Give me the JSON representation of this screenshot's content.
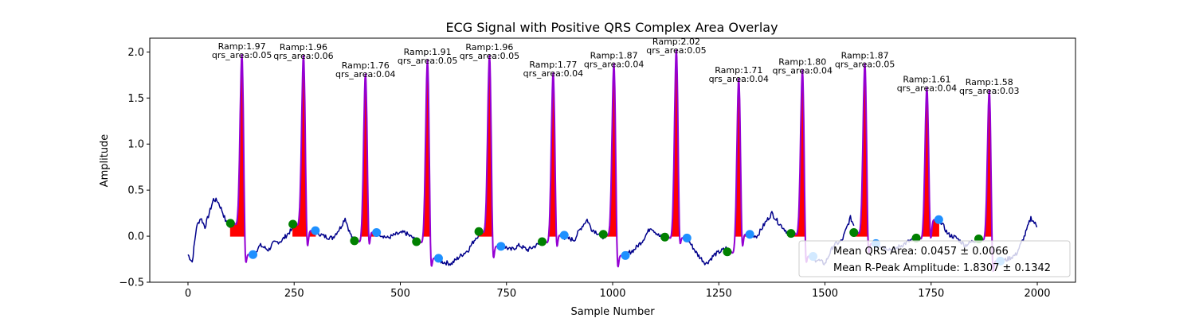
{
  "chart_data": {
    "type": "line",
    "title": "ECG Signal with Positive QRS Complex Area Overlay",
    "xlabel": "Sample Number",
    "ylabel": "Amplitude",
    "xlim": [
      -90,
      2090
    ],
    "ylim": [
      -0.5,
      2.15
    ],
    "xticks": [
      0,
      250,
      500,
      750,
      1000,
      1250,
      1500,
      1750,
      2000
    ],
    "yticks": [
      -0.5,
      0.0,
      0.5,
      1.0,
      1.5,
      2.0
    ],
    "ytick_labels": [
      "−0.5",
      "0.0",
      "0.5",
      "1.0",
      "1.5",
      "2.0"
    ],
    "grid": false,
    "colors": {
      "ecg": "#00008b",
      "qrs_line": "#9400d3",
      "qrs_fill": "#ff0000",
      "onset": "#008000",
      "offset": "#1e90ff"
    },
    "baseline": [
      [
        0,
        -0.2
      ],
      [
        10,
        -0.28
      ],
      [
        20,
        0.1
      ],
      [
        30,
        0.2
      ],
      [
        40,
        0.1
      ],
      [
        50,
        0.25
      ],
      [
        60,
        0.4
      ],
      [
        70,
        0.38
      ],
      [
        80,
        0.28
      ],
      [
        90,
        0.15
      ],
      [
        150,
        -0.22
      ],
      [
        170,
        -0.1
      ],
      [
        190,
        -0.15
      ],
      [
        200,
        -0.08
      ],
      [
        220,
        -0.05
      ],
      [
        240,
        0.05
      ],
      [
        260,
        0.12
      ],
      [
        300,
        0.05
      ],
      [
        320,
        0.0
      ],
      [
        340,
        -0.02
      ],
      [
        360,
        0.1
      ],
      [
        370,
        0.2
      ],
      [
        380,
        0.05
      ],
      [
        390,
        -0.05
      ],
      [
        440,
        0.05
      ],
      [
        470,
        -0.02
      ],
      [
        490,
        0.02
      ],
      [
        510,
        0.04
      ],
      [
        530,
        -0.02
      ],
      [
        580,
        -0.25
      ],
      [
        600,
        -0.28
      ],
      [
        620,
        -0.3
      ],
      [
        640,
        -0.22
      ],
      [
        660,
        -0.15
      ],
      [
        680,
        0.0
      ],
      [
        740,
        -0.1
      ],
      [
        760,
        -0.15
      ],
      [
        780,
        -0.1
      ],
      [
        800,
        -0.15
      ],
      [
        820,
        -0.1
      ],
      [
        840,
        -0.05
      ],
      [
        890,
        -0.02
      ],
      [
        910,
        -0.04
      ],
      [
        920,
        0.05
      ],
      [
        930,
        0.12
      ],
      [
        940,
        0.18
      ],
      [
        950,
        0.08
      ],
      [
        970,
        0.02
      ],
      [
        1030,
        -0.2
      ],
      [
        1050,
        -0.15
      ],
      [
        1070,
        -0.05
      ],
      [
        1090,
        0.1
      ],
      [
        1110,
        0.0
      ],
      [
        1130,
        -0.02
      ],
      [
        1175,
        -0.02
      ],
      [
        1200,
        -0.2
      ],
      [
        1220,
        -0.3
      ],
      [
        1240,
        -0.2
      ],
      [
        1260,
        -0.15
      ],
      [
        1320,
        0.02
      ],
      [
        1340,
        0.0
      ],
      [
        1360,
        0.15
      ],
      [
        1375,
        0.25
      ],
      [
        1390,
        0.15
      ],
      [
        1410,
        0.05
      ],
      [
        1420,
        0.02
      ],
      [
        1465,
        -0.3
      ],
      [
        1480,
        -0.25
      ],
      [
        1500,
        -0.3
      ],
      [
        1520,
        -0.1
      ],
      [
        1540,
        -0.05
      ],
      [
        1560,
        0.2
      ],
      [
        1575,
        0.05
      ],
      [
        1620,
        -0.08
      ],
      [
        1640,
        -0.12
      ],
      [
        1660,
        -0.15
      ],
      [
        1680,
        -0.1
      ],
      [
        1700,
        -0.05
      ],
      [
        1720,
        -0.02
      ],
      [
        1770,
        0.18
      ],
      [
        1790,
        0.02
      ],
      [
        1810,
        -0.02
      ],
      [
        1830,
        -0.1
      ],
      [
        1850,
        -0.05
      ],
      [
        1870,
        -0.03
      ],
      [
        1915,
        -0.28
      ],
      [
        1930,
        -0.25
      ],
      [
        1950,
        -0.2
      ],
      [
        1970,
        0.0
      ],
      [
        1985,
        0.2
      ],
      [
        2000,
        0.1
      ]
    ],
    "beats": [
      {
        "onset_x": 100,
        "onset_y": 0.14,
        "r_x": 127,
        "r_amp": 1.97,
        "offset_x": 153,
        "offset_y": -0.2,
        "amp_label": "Ramp:1.97",
        "area_label": "qrs_area:0.05"
      },
      {
        "onset_x": 247,
        "onset_y": 0.13,
        "r_x": 272,
        "r_amp": 1.96,
        "offset_x": 300,
        "offset_y": 0.06,
        "amp_label": "Ramp:1.96",
        "area_label": "qrs_area:0.06"
      },
      {
        "onset_x": 392,
        "onset_y": -0.05,
        "r_x": 418,
        "r_amp": 1.76,
        "offset_x": 444,
        "offset_y": 0.04,
        "amp_label": "Ramp:1.76",
        "area_label": "qrs_area:0.04"
      },
      {
        "onset_x": 538,
        "onset_y": -0.06,
        "r_x": 564,
        "r_amp": 1.91,
        "offset_x": 590,
        "offset_y": -0.24,
        "amp_label": "Ramp:1.91",
        "area_label": "qrs_area:0.05"
      },
      {
        "onset_x": 685,
        "onset_y": 0.05,
        "r_x": 710,
        "r_amp": 1.96,
        "offset_x": 737,
        "offset_y": -0.11,
        "amp_label": "Ramp:1.96",
        "area_label": "qrs_area:0.05"
      },
      {
        "onset_x": 834,
        "onset_y": -0.06,
        "r_x": 860,
        "r_amp": 1.77,
        "offset_x": 886,
        "offset_y": 0.01,
        "amp_label": "Ramp:1.77",
        "area_label": "qrs_area:0.04"
      },
      {
        "onset_x": 978,
        "onset_y": 0.02,
        "r_x": 1003,
        "r_amp": 1.87,
        "offset_x": 1030,
        "offset_y": -0.21,
        "amp_label": "Ramp:1.87",
        "area_label": "qrs_area:0.04"
      },
      {
        "onset_x": 1123,
        "onset_y": -0.01,
        "r_x": 1150,
        "r_amp": 2.02,
        "offset_x": 1175,
        "offset_y": -0.02,
        "amp_label": "Ramp:2.02",
        "area_label": "qrs_area:0.05"
      },
      {
        "onset_x": 1270,
        "onset_y": -0.17,
        "r_x": 1297,
        "r_amp": 1.71,
        "offset_x": 1323,
        "offset_y": 0.02,
        "amp_label": "Ramp:1.71",
        "area_label": "qrs_area:0.04"
      },
      {
        "onset_x": 1420,
        "onset_y": 0.03,
        "r_x": 1447,
        "r_amp": 1.8,
        "offset_x": 1472,
        "offset_y": -0.22,
        "amp_label": "Ramp:1.80",
        "area_label": "qrs_area:0.04"
      },
      {
        "onset_x": 1568,
        "onset_y": 0.04,
        "r_x": 1594,
        "r_amp": 1.87,
        "offset_x": 1620,
        "offset_y": -0.08,
        "amp_label": "Ramp:1.87",
        "area_label": "qrs_area:0.05"
      },
      {
        "onset_x": 1715,
        "onset_y": -0.02,
        "r_x": 1740,
        "r_amp": 1.61,
        "offset_x": 1768,
        "offset_y": 0.18,
        "amp_label": "Ramp:1.61",
        "area_label": "qrs_area:0.04"
      },
      {
        "onset_x": 1862,
        "onset_y": -0.03,
        "r_x": 1887,
        "r_amp": 1.58,
        "offset_x": 1913,
        "offset_y": -0.27,
        "amp_label": "Ramp:1.58",
        "area_label": "qrs_area:0.03"
      }
    ],
    "legend": {
      "placement": "lower-right",
      "entries": [
        "Mean QRS Area: 0.0457 ± 0.0066",
        "Mean R-Peak Amplitude: 1.8307 ± 0.1342"
      ]
    }
  }
}
